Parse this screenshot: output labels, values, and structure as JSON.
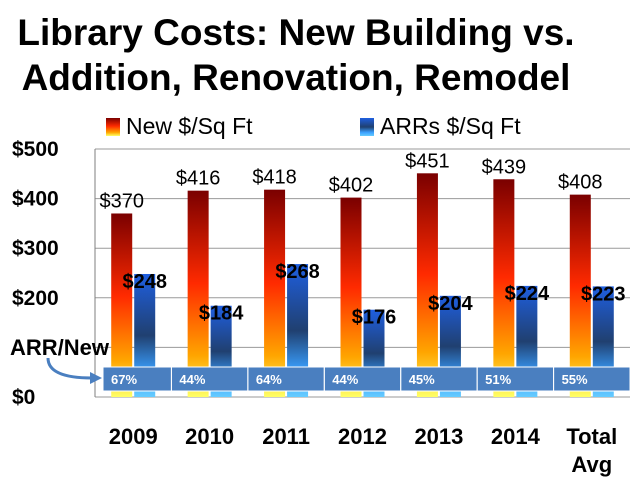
{
  "chart_data": {
    "type": "bar",
    "title_lines": [
      "Library Costs: New Building vs.",
      "Addition, Renovation, Remodel"
    ],
    "categories": [
      [
        "2009"
      ],
      [
        "2010"
      ],
      [
        "2011"
      ],
      [
        "2012"
      ],
      [
        "2013"
      ],
      [
        "2014"
      ],
      [
        "Total",
        "Avg"
      ]
    ],
    "series": [
      {
        "name": "New $/Sq Ft",
        "values": [
          370,
          416,
          418,
          402,
          451,
          439,
          408
        ],
        "labels": [
          "$370",
          "$416",
          "$418",
          "$402",
          "$451",
          "$439",
          "$408"
        ]
      },
      {
        "name": "ARRs  $/Sq Ft",
        "values": [
          248,
          184,
          268,
          176,
          204,
          224,
          223
        ],
        "labels": [
          "$248",
          "$184",
          "$268",
          "$176",
          "$204",
          "$224",
          "$223"
        ]
      }
    ],
    "ratio_row": {
      "label": "ARR/New",
      "values": [
        "67%",
        "44%",
        "64%",
        "44%",
        "45%",
        "51%",
        "55%"
      ]
    },
    "yticks": [
      0,
      100,
      200,
      300,
      400,
      500
    ],
    "ytick_labels": [
      "$0",
      "",
      "$200",
      "$300",
      "$400",
      "$500"
    ],
    "ylim": [
      0,
      500
    ],
    "grid": true,
    "legend_position": "top",
    "colors": {
      "new_top": "#7a0000",
      "new_mid": "#ff2a00",
      "new_low": "#ffa500",
      "new_bottom": "#ffff66",
      "arr_top": "#1f5fe0",
      "arr_mid": "#204070",
      "arr_low": "#3aa0ff",
      "arr_bottom": "#66ccff",
      "ratio_band": "#4a7fc0",
      "callout_arrow": "#4a7fc0"
    }
  }
}
